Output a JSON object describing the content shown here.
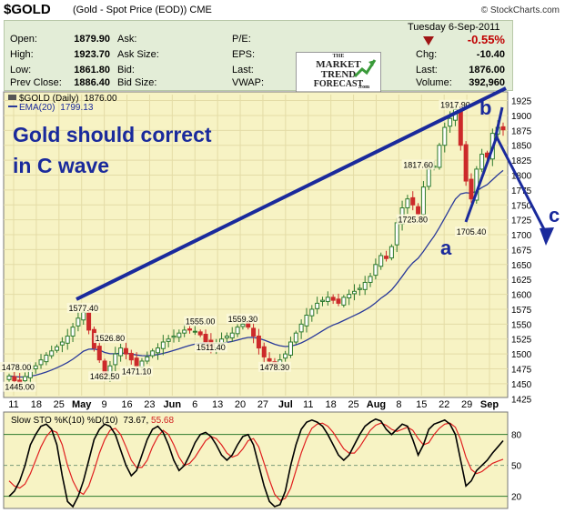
{
  "header": {
    "symbol": "$GOLD",
    "description": "(Gold - Spot Price (EOD))",
    "exchange": "CME",
    "credit": "© StockCharts.com",
    "date": "Tuesday  6-Sep-2011"
  },
  "quote": {
    "open_label": "Open:",
    "open": "1879.90",
    "high_label": "High:",
    "high": "1923.70",
    "low_label": "Low:",
    "low": "1861.80",
    "prev_label": "Prev Close:",
    "prev": "1886.40",
    "ask_label": "Ask:",
    "ask_size_label": "Ask Size:",
    "bid_label": "Bid:",
    "bid_size_label": "Bid Size:",
    "pe_label": "P/E:",
    "eps_label": "EPS:",
    "last_label": "Last:",
    "vwap_label": "VWAP:",
    "change_pct": "-0.55%",
    "chg_label": "Chg:",
    "chg": "-10.40",
    "last2_label": "Last:",
    "last": "1876.00",
    "volume_label": "Volume:",
    "volume": "392,960"
  },
  "logo": {
    "line1": "THE",
    "line2": "MARKET",
    "line3": "TREND",
    "line4": "FORECAST",
    "line5": ".com"
  },
  "colors": {
    "panel_bg": "#f7f3c4",
    "up": "#2d7a2d",
    "down": "#cc2a2a",
    "annotation": "#1a2a9c",
    "ema": "#2a3a9a",
    "k_line": "#000000",
    "d_line": "#e02020"
  },
  "chart_data": [
    {
      "type": "candlestick",
      "legend": {
        "series_label": "$GOLD (Daily)",
        "series_value": "1876.00",
        "ema_label": "EMA(20)",
        "ema_value": "1799.13"
      },
      "ylim": [
        1430,
        1935
      ],
      "yticks": [
        1925,
        1900,
        1875,
        1850,
        1825,
        1800,
        1775,
        1750,
        1725,
        1700,
        1675,
        1650,
        1625,
        1600,
        1575,
        1550,
        1525,
        1500,
        1475,
        1450,
        1425
      ],
      "xticks": [
        {
          "label": "11",
          "bold": false
        },
        {
          "label": "18",
          "bold": false
        },
        {
          "label": "25",
          "bold": false
        },
        {
          "label": "May",
          "bold": true
        },
        {
          "label": "9",
          "bold": false
        },
        {
          "label": "16",
          "bold": false
        },
        {
          "label": "23",
          "bold": false
        },
        {
          "label": "Jun",
          "bold": true
        },
        {
          "label": "6",
          "bold": false
        },
        {
          "label": "13",
          "bold": false
        },
        {
          "label": "20",
          "bold": false
        },
        {
          "label": "27",
          "bold": false
        },
        {
          "label": "Jul",
          "bold": true
        },
        {
          "label": "11",
          "bold": false
        },
        {
          "label": "18",
          "bold": false
        },
        {
          "label": "25",
          "bold": false
        },
        {
          "label": "Aug",
          "bold": true
        },
        {
          "label": "8",
          "bold": false
        },
        {
          "label": "15",
          "bold": false
        },
        {
          "label": "22",
          "bold": false
        },
        {
          "label": "29",
          "bold": false
        },
        {
          "label": "Sep",
          "bold": true
        }
      ],
      "close": [
        1463,
        1455,
        1452,
        1462,
        1475,
        1480,
        1490,
        1498,
        1505,
        1512,
        1520,
        1530,
        1545,
        1560,
        1570,
        1540,
        1510,
        1490,
        1465,
        1480,
        1500,
        1510,
        1500,
        1490,
        1480,
        1488,
        1495,
        1505,
        1510,
        1520,
        1525,
        1530,
        1535,
        1540,
        1540,
        1538,
        1532,
        1520,
        1512,
        1518,
        1525,
        1530,
        1535,
        1545,
        1550,
        1545,
        1530,
        1510,
        1495,
        1488,
        1482,
        1490,
        1500,
        1520,
        1535,
        1550,
        1565,
        1575,
        1585,
        1590,
        1595,
        1590,
        1585,
        1595,
        1600,
        1605,
        1610,
        1620,
        1630,
        1650,
        1665,
        1660,
        1680,
        1720,
        1745,
        1760,
        1750,
        1735,
        1780,
        1810,
        1815,
        1850,
        1880,
        1895,
        1910,
        1850,
        1790,
        1760,
        1810,
        1835,
        1830,
        1870,
        1880,
        1876
      ],
      "price_labels": [
        {
          "text": "1478.00",
          "i": 0,
          "value": 1478
        },
        {
          "text": "1445.00",
          "i": 2,
          "value": 1445
        },
        {
          "text": "1577.40",
          "i": 14,
          "value": 1577.4
        },
        {
          "text": "1526.80",
          "i": 19,
          "value": 1526.8
        },
        {
          "text": "1462.50",
          "i": 18,
          "value": 1462.5
        },
        {
          "text": "1471.10",
          "i": 24,
          "value": 1471.1
        },
        {
          "text": "1555.00",
          "i": 36,
          "value": 1555
        },
        {
          "text": "1511.40",
          "i": 38,
          "value": 1511.4
        },
        {
          "text": "1559.30",
          "i": 44,
          "value": 1559.3
        },
        {
          "text": "1478.30",
          "i": 50,
          "value": 1478.3
        },
        {
          "text": "1817.60",
          "i": 77,
          "value": 1817.6
        },
        {
          "text": "1725.80",
          "i": 76,
          "value": 1725.8
        },
        {
          "text": "1917.90",
          "i": 84,
          "value": 1917.9
        },
        {
          "text": "1705.40",
          "i": 87,
          "value": 1705.4
        }
      ],
      "annotations": {
        "headline1": "Gold should correct",
        "headline2": "in C wave",
        "wave_a": "a",
        "wave_b": "b",
        "wave_c": "c"
      }
    },
    {
      "type": "line",
      "legend": {
        "label": "Slow STO %K(10) %D(10)",
        "k_value": "73.67",
        "d_value": "55.68"
      },
      "ylim": [
        10,
        100
      ],
      "yticks": [
        80,
        50,
        20
      ],
      "k": [
        20,
        25,
        35,
        50,
        70,
        80,
        88,
        90,
        85,
        70,
        40,
        15,
        10,
        20,
        35,
        55,
        75,
        85,
        90,
        88,
        80,
        65,
        50,
        40,
        45,
        60,
        75,
        85,
        88,
        82,
        70,
        55,
        45,
        50,
        60,
        72,
        80,
        82,
        78,
        70,
        60,
        55,
        60,
        70,
        78,
        80,
        70,
        50,
        30,
        15,
        10,
        12,
        25,
        50,
        70,
        85,
        92,
        94,
        92,
        88,
        80,
        70,
        60,
        55,
        60,
        70,
        80,
        88,
        92,
        95,
        93,
        85,
        80,
        85,
        90,
        88,
        75,
        60,
        70,
        85,
        90,
        92,
        94,
        90,
        80,
        55,
        30,
        35,
        45,
        50,
        55,
        62,
        68,
        74
      ],
      "d": [
        35,
        30,
        28,
        32,
        42,
        55,
        68,
        78,
        84,
        82,
        70,
        50,
        35,
        25,
        22,
        30,
        45,
        62,
        75,
        84,
        86,
        80,
        68,
        55,
        48,
        48,
        55,
        68,
        78,
        84,
        80,
        70,
        58,
        50,
        52,
        58,
        66,
        74,
        78,
        76,
        70,
        62,
        58,
        60,
        66,
        74,
        76,
        68,
        52,
        36,
        22,
        16,
        18,
        28,
        45,
        62,
        76,
        86,
        90,
        91,
        88,
        82,
        74,
        66,
        62,
        62,
        68,
        76,
        84,
        89,
        91,
        89,
        85,
        83,
        85,
        87,
        84,
        76,
        70,
        72,
        80,
        86,
        90,
        91,
        87,
        75,
        58,
        46,
        42,
        44,
        48,
        52,
        54,
        56
      ]
    }
  ]
}
